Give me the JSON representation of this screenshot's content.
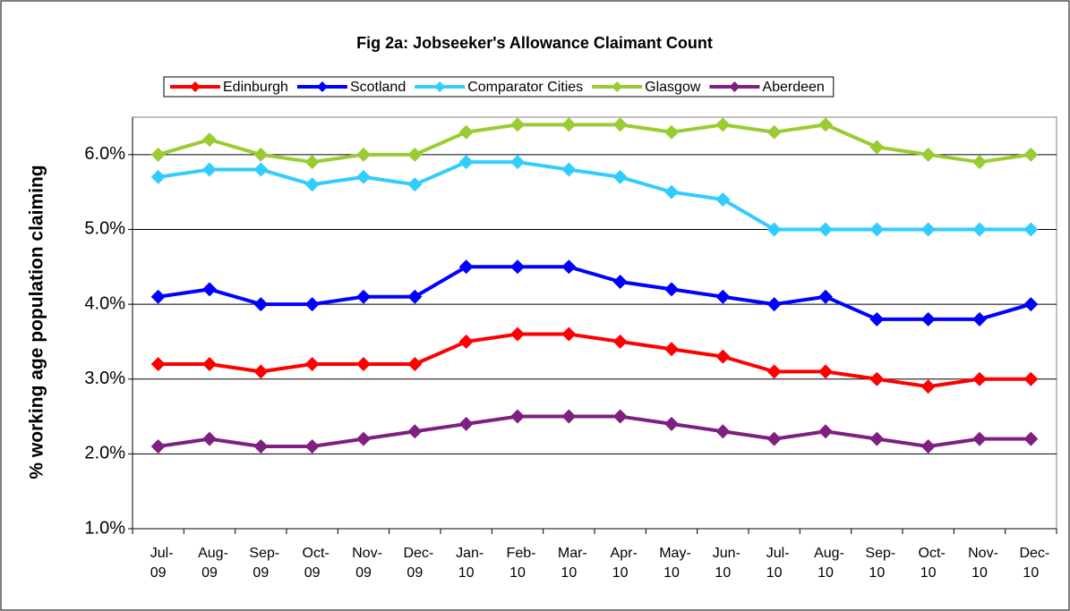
{
  "chart_data": {
    "type": "line",
    "title": "Fig 2a: Jobseeker's Allowance Claimant Count",
    "y_label": "% working age population claiming",
    "categories": [
      [
        "Jul-",
        "09"
      ],
      [
        "Aug-",
        "09"
      ],
      [
        "Sep-",
        "09"
      ],
      [
        "Oct-",
        "09"
      ],
      [
        "Nov-",
        "09"
      ],
      [
        "Dec-",
        "09"
      ],
      [
        "Jan-",
        "10"
      ],
      [
        "Feb-",
        "10"
      ],
      [
        "Mar-",
        "10"
      ],
      [
        "Apr-",
        "10"
      ],
      [
        "May-",
        "10"
      ],
      [
        "Jun-",
        "10"
      ],
      [
        "Jul-",
        "10"
      ],
      [
        "Aug-",
        "10"
      ],
      [
        "Sep-",
        "10"
      ],
      [
        "Oct-",
        "10"
      ],
      [
        "Nov-",
        "10"
      ],
      [
        "Dec-",
        "10"
      ]
    ],
    "series": [
      {
        "name": "Edinburgh",
        "color": "#ff0000",
        "values": [
          3.2,
          3.2,
          3.1,
          3.2,
          3.2,
          3.2,
          3.5,
          3.6,
          3.6,
          3.5,
          3.4,
          3.3,
          3.1,
          3.1,
          3.0,
          2.9,
          3.0,
          3.0
        ]
      },
      {
        "name": "Scotland",
        "color": "#0000ff",
        "values": [
          4.1,
          4.2,
          4.0,
          4.0,
          4.1,
          4.1,
          4.5,
          4.5,
          4.5,
          4.3,
          4.2,
          4.1,
          4.0,
          4.1,
          3.8,
          3.8,
          3.8,
          4.0
        ]
      },
      {
        "name": "Comparator Cities",
        "color": "#33ccff",
        "values": [
          5.7,
          5.8,
          5.8,
          5.6,
          5.7,
          5.6,
          5.9,
          5.9,
          5.8,
          5.7,
          5.5,
          5.4,
          5.0,
          5.0,
          5.0,
          5.0,
          5.0,
          5.0
        ]
      },
      {
        "name": "Glasgow",
        "color": "#99cc33",
        "values": [
          6.0,
          6.2,
          6.0,
          5.9,
          6.0,
          6.0,
          6.3,
          6.4,
          6.4,
          6.4,
          6.3,
          6.4,
          6.3,
          6.4,
          6.1,
          6.0,
          5.9,
          6.0
        ]
      },
      {
        "name": "Aberdeen",
        "color": "#7f1f7f",
        "values": [
          2.1,
          2.2,
          2.1,
          2.1,
          2.2,
          2.3,
          2.4,
          2.5,
          2.5,
          2.5,
          2.4,
          2.3,
          2.2,
          2.3,
          2.2,
          2.1,
          2.2,
          2.2
        ]
      }
    ],
    "ylim": [
      1.0,
      6.5
    ],
    "yticks": [
      {
        "value": 1,
        "label": "1.0%"
      },
      {
        "value": 2,
        "label": "2.0%"
      },
      {
        "value": 3,
        "label": "3.0%"
      },
      {
        "value": 4,
        "label": "4.0%"
      },
      {
        "value": 5,
        "label": "5.0%"
      },
      {
        "value": 6,
        "label": "6.0%"
      }
    ],
    "grid": true,
    "legend": "top"
  }
}
